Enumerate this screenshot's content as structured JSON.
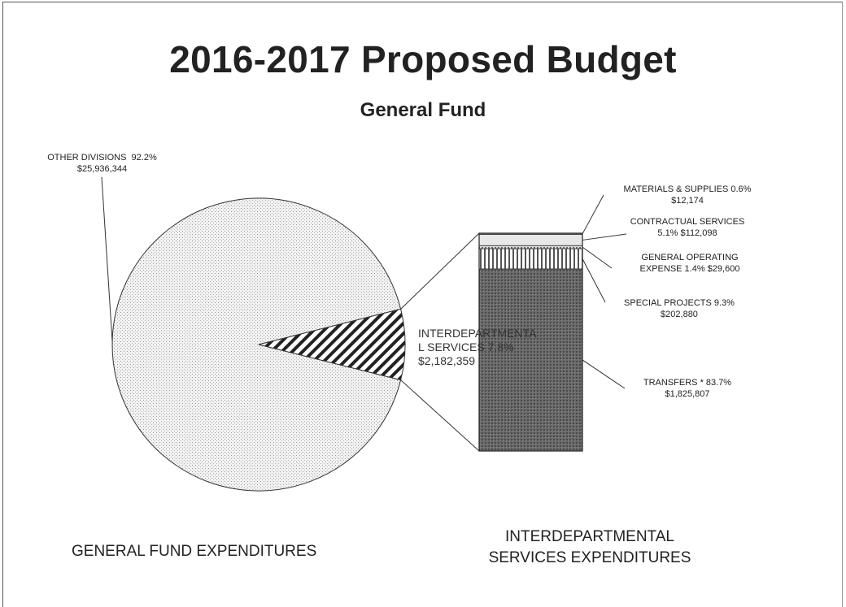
{
  "title": "2016-2017 Proposed Budget",
  "subtitle": "General Fund",
  "chart_data": [
    {
      "type": "pie",
      "caption": "GENERAL FUND EXPENDITURES",
      "slices": [
        {
          "name": "OTHER DIVISIONS",
          "percent_text": "92.2%",
          "amount_text": "$25,936,344",
          "percent": 92.2,
          "amount": 25936344
        },
        {
          "name": "INTERDEPARTMENTAL SERVICES",
          "label_line1": "INTERDEPARTMENTA",
          "label_line2": "L SERVICES  7.8%",
          "amount_text": "$2,182,359",
          "percent": 7.8,
          "amount": 2182359
        }
      ]
    },
    {
      "type": "bar",
      "stacked": true,
      "caption_line1": "INTERDEPARTMENTAL",
      "caption_line2": "SERVICES EXPENDITURES",
      "segments": [
        {
          "name": "TRANSFERS",
          "label_line1": "TRANSFERS *  83.7%",
          "label_line2": "$1,825,807",
          "percent": 83.7,
          "amount": 1825807
        },
        {
          "name": "SPECIAL PROJECTS",
          "label_line1": "SPECIAL PROJECTS  9.3%",
          "label_line2": "$202,880",
          "percent": 9.3,
          "amount": 202880
        },
        {
          "name": "GENERAL OPERATING EXPENSE",
          "label_line1": "GENERAL OPERATING",
          "label_line2": "EXPENSE  1.4%  $29,600",
          "percent": 1.4,
          "amount": 29600
        },
        {
          "name": "CONTRACTUAL SERVICES",
          "label_line1": "CONTRACTUAL SERVICES",
          "label_line2": "5.1%  $112,098",
          "percent": 5.1,
          "amount": 112098
        },
        {
          "name": "MATERIALS & SUPPLIES",
          "label_line1": "MATERIALS & SUPPLIES  0.6%",
          "label_line2": "$12,174",
          "percent": 0.6,
          "amount": 12174
        }
      ]
    }
  ]
}
